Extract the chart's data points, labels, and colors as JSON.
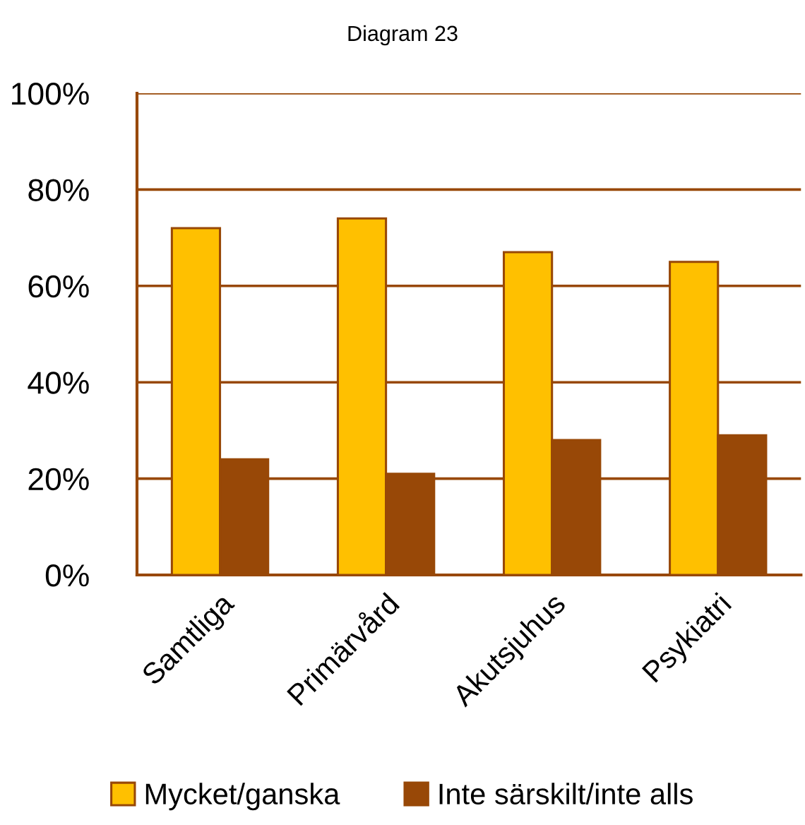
{
  "chart_data": {
    "type": "bar",
    "title": "Diagram 23",
    "categories": [
      "Samtliga",
      "Primärvård",
      "Akutsjuhus",
      "Psykiatri"
    ],
    "series": [
      {
        "name": "Mycket/ganska",
        "color": "#ffc000",
        "values": [
          72,
          74,
          67,
          65
        ]
      },
      {
        "name": "Inte särskilt/inte alls",
        "color": "#984807",
        "values": [
          24,
          21,
          28,
          29
        ]
      }
    ],
    "ylim": [
      0,
      100
    ],
    "yticks": [
      {
        "value": 0,
        "label": "0%"
      },
      {
        "value": 20,
        "label": "20%"
      },
      {
        "value": 40,
        "label": "40%"
      },
      {
        "value": 60,
        "label": "60%"
      },
      {
        "value": 80,
        "label": "80%"
      },
      {
        "value": 100,
        "label": "100%"
      }
    ],
    "grid": "y",
    "legend": "bottom"
  }
}
